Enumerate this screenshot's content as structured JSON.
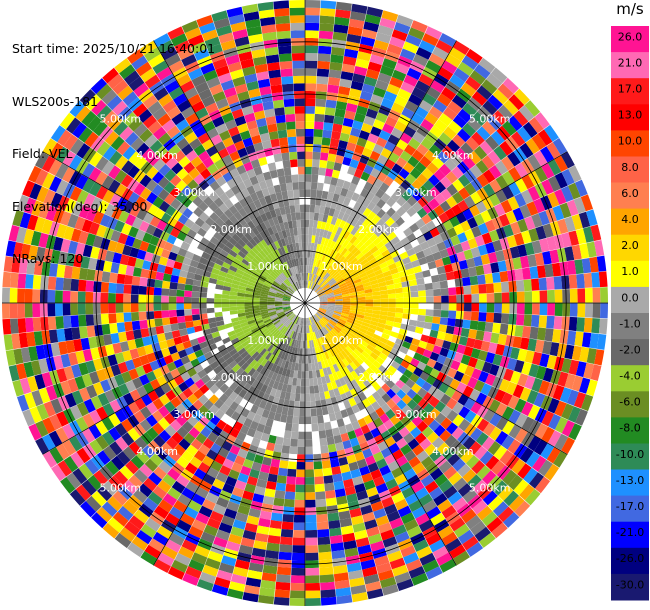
{
  "info": {
    "start_time": "Start time: 2025/10/21 16:40:01",
    "instrument": "WLS200s-181",
    "field": "Field: VEL",
    "elevation": "Elevation(deg): 35.00",
    "nrays": "NRays: 120"
  },
  "chart_data": {
    "type": "heatmap",
    "projection": "polar-ppi",
    "field": "VEL",
    "nrays": 120,
    "range_rings_km": [
      1,
      2,
      3,
      4,
      5
    ],
    "range_ring_labels": [
      "1.00km",
      "2.00km",
      "3.00km",
      "4.00km",
      "5.00km"
    ],
    "colorbar": {
      "unit": "m/s",
      "ticks": [
        "26.0",
        "21.0",
        "17.0",
        "13.0",
        "10.0",
        "8.0",
        "6.0",
        "4.0",
        "2.0",
        "1.0",
        "0.0",
        "-1.0",
        "-2.0",
        "-4.0",
        "-6.0",
        "-8.0",
        "-10.0",
        "-13.0",
        "-17.0",
        "-21.0",
        "-26.0",
        "-30.0"
      ],
      "colors": [
        "#ff1493",
        "#ff69b4",
        "#ff1a1a",
        "#ff0000",
        "#ff4500",
        "#ff6347",
        "#ff7f50",
        "#ffa500",
        "#ffd700",
        "#ffff00",
        "#a9a9a9",
        "#808080",
        "#696969",
        "#9acd32",
        "#6b8e23",
        "#228b22",
        "#2e8b57",
        "#1e90ff",
        "#4169e1",
        "#0000ff",
        "#000080",
        "#191970"
      ]
    }
  }
}
